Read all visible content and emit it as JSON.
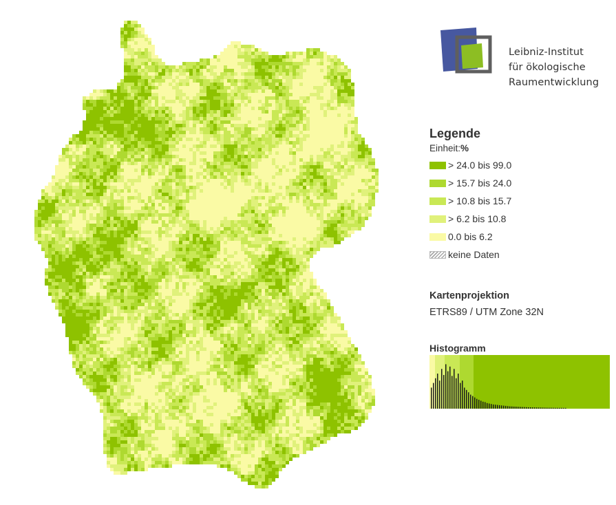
{
  "map": {
    "colors": [
      "#fafaa5",
      "#e0f17b",
      "#c9e855",
      "#aed930",
      "#8ec200"
    ]
  },
  "logo": {
    "lines": [
      "Leibniz-Institut",
      "für ökologische",
      "Raumentwicklung"
    ],
    "colors": {
      "blue": "#4758a0",
      "green": "#8dbe23",
      "frame": "#5f5f5f"
    }
  },
  "legend": {
    "title": "Legende",
    "unit_label": "Einheit:",
    "unit_value": "%",
    "items": [
      {
        "label": "> 24.0 bis 99.0",
        "color": "#8ec200"
      },
      {
        "label": "> 15.7 bis 24.0",
        "color": "#aed930"
      },
      {
        "label": "> 10.8 bis 15.7",
        "color": "#c9e855"
      },
      {
        "label": "> 6.2 bis 10.8",
        "color": "#e0f17b"
      },
      {
        "label": "0.0 bis 6.2",
        "color": "#fafaa5"
      },
      {
        "label": "keine Daten",
        "color": "nodata"
      }
    ]
  },
  "projection": {
    "title": "Kartenprojektion",
    "value": "ETRS89 / UTM Zone 32N"
  },
  "histogram": {
    "title": "Histogramm",
    "class_breaks": [
      0.0,
      6.2,
      10.8,
      15.7,
      24.0,
      99.0
    ],
    "relative_frequencies": [
      0.45,
      0.55,
      0.65,
      0.75,
      0.6,
      0.85,
      0.72,
      0.95,
      0.8,
      0.9,
      0.7,
      0.85,
      0.65,
      0.75,
      0.55,
      0.6,
      0.45,
      0.4,
      0.35,
      0.3,
      0.27,
      0.24,
      0.21,
      0.19,
      0.17,
      0.15,
      0.14,
      0.12,
      0.11,
      0.1,
      0.09,
      0.085,
      0.08,
      0.075,
      0.07,
      0.065,
      0.06,
      0.055,
      0.05,
      0.048,
      0.045,
      0.043,
      0.04,
      0.038,
      0.036,
      0.034,
      0.032,
      0.03,
      0.029,
      0.028,
      0.027,
      0.026,
      0.025,
      0.024,
      0.023,
      0.022,
      0.021,
      0.02,
      0.02,
      0.019,
      0.018,
      0.018,
      0.017,
      0.017,
      0.016,
      0.016
    ]
  }
}
